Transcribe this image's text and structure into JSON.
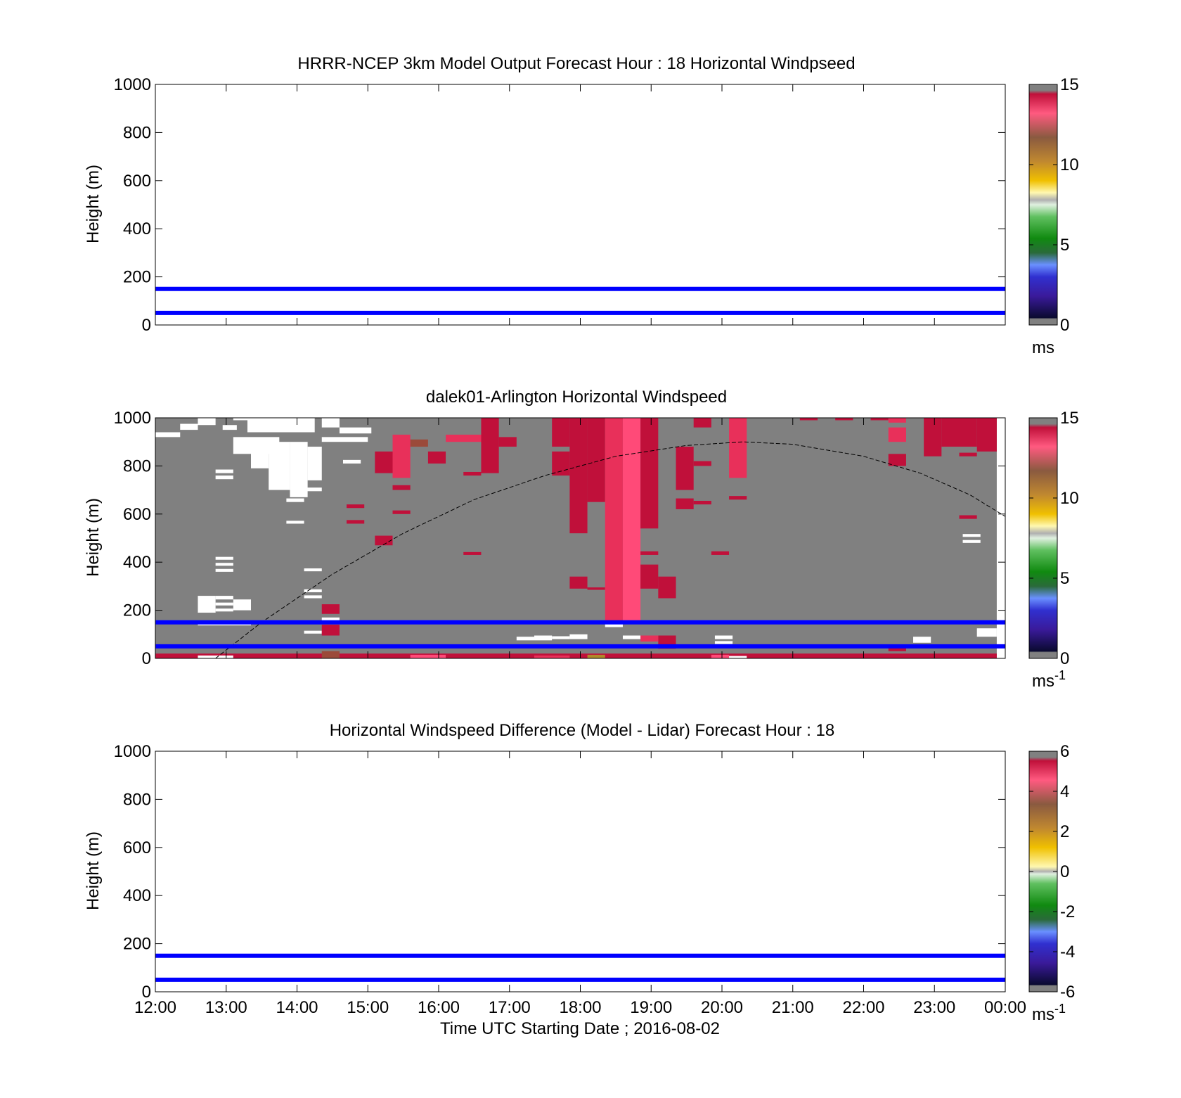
{
  "figure": {
    "x_axis_label": "Time UTC  Starting Date ; 2016-08-02"
  },
  "chart_data": [
    {
      "type": "heatmap",
      "title": "HRRR-NCEP 3km Model Output   Forecast Hour : 18 Horizontal Windpseed",
      "ylabel": "Height (m)",
      "xlabel": "",
      "xlim": [
        12,
        24
      ],
      "ylim": [
        0,
        1000
      ],
      "x_ticks": [
        "12:00",
        "13:00",
        "14:00",
        "15:00",
        "16:00",
        "17:00",
        "18:00",
        "19:00",
        "20:00",
        "21:00",
        "22:00",
        "23:00",
        "00:00"
      ],
      "y_ticks": [
        "0",
        "200",
        "400",
        "600",
        "800",
        "1000"
      ],
      "show_x_tick_labels": false,
      "colorbar": {
        "min": 0,
        "max": 15,
        "ticks": [
          "0",
          "5",
          "10",
          "15"
        ],
        "unit": "ms",
        "unit_sup": "",
        "palette": "speed"
      },
      "reference_lines": [
        {
          "height_m": 150,
          "color": "#0000ff"
        },
        {
          "height_m": 50,
          "color": "#0000ff"
        }
      ],
      "cells": []
    },
    {
      "type": "heatmap",
      "title": "dalek01-Arlington  Horizontal Windspeed",
      "ylabel": "Height (m)",
      "xlabel": "",
      "xlim": [
        12,
        24
      ],
      "ylim": [
        0,
        1000
      ],
      "x_ticks": [
        "12:00",
        "13:00",
        "14:00",
        "15:00",
        "16:00",
        "17:00",
        "18:00",
        "19:00",
        "20:00",
        "21:00",
        "22:00",
        "23:00",
        "00:00"
      ],
      "y_ticks": [
        "0",
        "200",
        "400",
        "600",
        "800",
        "1000"
      ],
      "show_x_tick_labels": false,
      "colorbar": {
        "min": 0,
        "max": 15,
        "ticks": [
          "0",
          "5",
          "10",
          "15"
        ],
        "unit": "ms",
        "unit_sup": "-1",
        "palette": "speed"
      },
      "background_fill": {
        "t0": 12,
        "t1": 23.88,
        "h0": 0,
        "h1": 1000,
        "color": "#808080"
      },
      "reference_lines": [
        {
          "height_m": 150,
          "color": "#0000ff"
        },
        {
          "height_m": 50,
          "color": "#0000ff"
        }
      ],
      "dashed_curve": {
        "color": "#000000",
        "points": [
          [
            12.85,
            0
          ],
          [
            13.5,
            150
          ],
          [
            14.5,
            350
          ],
          [
            15.5,
            520
          ],
          [
            16.5,
            660
          ],
          [
            17.5,
            760
          ],
          [
            18.5,
            840
          ],
          [
            19.5,
            885
          ],
          [
            20.3,
            900
          ],
          [
            21.0,
            890
          ],
          [
            22.0,
            840
          ],
          [
            22.8,
            770
          ],
          [
            23.5,
            680
          ],
          [
            24.0,
            590
          ]
        ]
      },
      "cells": [
        {
          "t0": 12.6,
          "t1": 12.85,
          "h0": 970,
          "h1": 1000,
          "c": "#ffffff"
        },
        {
          "t0": 12.35,
          "t1": 12.6,
          "h0": 950,
          "h1": 975,
          "c": "#ffffff"
        },
        {
          "t0": 12.0,
          "t1": 12.35,
          "h0": 920,
          "h1": 940,
          "c": "#ffffff"
        },
        {
          "t0": 12.95,
          "t1": 13.15,
          "h0": 950,
          "h1": 970,
          "c": "#ffffff"
        },
        {
          "t0": 13.1,
          "t1": 13.5,
          "h0": 990,
          "h1": 1000,
          "c": "#ffffff"
        },
        {
          "t0": 13.1,
          "t1": 13.75,
          "h0": 850,
          "h1": 920,
          "c": "#ffffff"
        },
        {
          "t0": 13.3,
          "t1": 14.25,
          "h0": 940,
          "h1": 1000,
          "c": "#ffffff"
        },
        {
          "t0": 13.35,
          "t1": 13.6,
          "h0": 790,
          "h1": 860,
          "c": "#ffffff"
        },
        {
          "t0": 13.6,
          "t1": 13.9,
          "h0": 700,
          "h1": 900,
          "c": "#ffffff"
        },
        {
          "t0": 13.9,
          "t1": 14.15,
          "h0": 670,
          "h1": 900,
          "c": "#ffffff"
        },
        {
          "t0": 14.15,
          "t1": 14.35,
          "h0": 740,
          "h1": 880,
          "c": "#ffffff"
        },
        {
          "t0": 14.35,
          "t1": 15.0,
          "h0": 900,
          "h1": 920,
          "c": "#ffffff"
        },
        {
          "t0": 14.35,
          "t1": 14.6,
          "h0": 960,
          "h1": 1000,
          "c": "#ffffff"
        },
        {
          "t0": 14.6,
          "t1": 15.05,
          "h0": 935,
          "h1": 960,
          "c": "#ffffff"
        },
        {
          "t0": 12.85,
          "t1": 13.1,
          "h0": 770,
          "h1": 785,
          "c": "#ffffff"
        },
        {
          "t0": 12.85,
          "t1": 13.1,
          "h0": 745,
          "h1": 760,
          "c": "#ffffff"
        },
        {
          "t0": 13.85,
          "t1": 14.1,
          "h0": 650,
          "h1": 665,
          "c": "#ffffff"
        },
        {
          "t0": 14.1,
          "t1": 14.35,
          "h0": 695,
          "h1": 710,
          "c": "#ffffff"
        },
        {
          "t0": 13.85,
          "t1": 14.1,
          "h0": 560,
          "h1": 572,
          "c": "#ffffff"
        },
        {
          "t0": 14.65,
          "t1": 14.9,
          "h0": 810,
          "h1": 825,
          "c": "#ffffff"
        },
        {
          "t0": 12.85,
          "t1": 13.1,
          "h0": 410,
          "h1": 422,
          "c": "#ffffff"
        },
        {
          "t0": 12.85,
          "t1": 13.1,
          "h0": 385,
          "h1": 397,
          "c": "#ffffff"
        },
        {
          "t0": 12.85,
          "t1": 13.1,
          "h0": 360,
          "h1": 372,
          "c": "#ffffff"
        },
        {
          "t0": 14.1,
          "t1": 14.35,
          "h0": 362,
          "h1": 374,
          "c": "#ffffff"
        },
        {
          "t0": 14.1,
          "t1": 14.35,
          "h0": 275,
          "h1": 287,
          "c": "#ffffff"
        },
        {
          "t0": 14.1,
          "t1": 14.35,
          "h0": 250,
          "h1": 262,
          "c": "#ffffff"
        },
        {
          "t0": 12.6,
          "t1": 12.85,
          "h0": 190,
          "h1": 260,
          "c": "#ffffff"
        },
        {
          "t0": 12.85,
          "t1": 13.1,
          "h0": 245,
          "h1": 260,
          "c": "#ffffff"
        },
        {
          "t0": 12.85,
          "t1": 13.1,
          "h0": 220,
          "h1": 232,
          "c": "#ffffff"
        },
        {
          "t0": 12.85,
          "t1": 13.1,
          "h0": 195,
          "h1": 207,
          "c": "#ffffff"
        },
        {
          "t0": 13.1,
          "t1": 13.35,
          "h0": 200,
          "h1": 245,
          "c": "#ffffff"
        },
        {
          "t0": 12.6,
          "t1": 13.35,
          "h0": 137,
          "h1": 147,
          "c": "#ffffff"
        },
        {
          "t0": 14.1,
          "t1": 14.35,
          "h0": 103,
          "h1": 115,
          "c": "#ffffff"
        },
        {
          "t0": 14.35,
          "t1": 14.6,
          "h0": 152,
          "h1": 170,
          "c": "#ffffff"
        },
        {
          "t0": 17.1,
          "t1": 17.35,
          "h0": 75,
          "h1": 90,
          "c": "#ffffff"
        },
        {
          "t0": 17.35,
          "t1": 17.6,
          "h0": 75,
          "h1": 95,
          "c": "#ffffff"
        },
        {
          "t0": 17.6,
          "t1": 17.85,
          "h0": 80,
          "h1": 92,
          "c": "#ffffff"
        },
        {
          "t0": 17.85,
          "t1": 18.1,
          "h0": 80,
          "h1": 100,
          "c": "#ffffff"
        },
        {
          "t0": 18.35,
          "t1": 18.6,
          "h0": 130,
          "h1": 145,
          "c": "#ffffff"
        },
        {
          "t0": 18.6,
          "t1": 18.85,
          "h0": 80,
          "h1": 95,
          "c": "#ffffff"
        },
        {
          "t0": 19.9,
          "t1": 20.15,
          "h0": 80,
          "h1": 95,
          "c": "#ffffff"
        },
        {
          "t0": 19.9,
          "t1": 20.15,
          "h0": 60,
          "h1": 72,
          "c": "#ffffff"
        },
        {
          "t0": 22.7,
          "t1": 22.95,
          "h0": 65,
          "h1": 90,
          "c": "#ffffff"
        },
        {
          "t0": 23.4,
          "t1": 23.65,
          "h0": 505,
          "h1": 517,
          "c": "#ffffff"
        },
        {
          "t0": 23.4,
          "t1": 23.65,
          "h0": 480,
          "h1": 492,
          "c": "#ffffff"
        },
        {
          "t0": 23.6,
          "t1": 23.88,
          "h0": 90,
          "h1": 125,
          "c": "#ffffff"
        },
        {
          "t0": 14.35,
          "t1": 14.6,
          "h0": 185,
          "h1": 225,
          "c": "#c0103a"
        },
        {
          "t0": 14.35,
          "t1": 14.6,
          "h0": 95,
          "h1": 140,
          "c": "#c0103a"
        },
        {
          "t0": 15.1,
          "t1": 15.35,
          "h0": 770,
          "h1": 860,
          "c": "#c0103a"
        },
        {
          "t0": 15.35,
          "t1": 15.6,
          "h0": 750,
          "h1": 930,
          "c": "#e8305a"
        },
        {
          "t0": 15.35,
          "t1": 15.6,
          "h0": 700,
          "h1": 720,
          "c": "#c0103a"
        },
        {
          "t0": 15.35,
          "t1": 15.6,
          "h0": 600,
          "h1": 615,
          "c": "#c0103a"
        },
        {
          "t0": 15.6,
          "t1": 15.85,
          "h0": 880,
          "h1": 910,
          "c": "#9b4a3a"
        },
        {
          "t0": 15.85,
          "t1": 16.1,
          "h0": 810,
          "h1": 860,
          "c": "#c0103a"
        },
        {
          "t0": 15.1,
          "t1": 15.35,
          "h0": 470,
          "h1": 510,
          "c": "#c0103a"
        },
        {
          "t0": 14.7,
          "t1": 14.95,
          "h0": 625,
          "h1": 640,
          "c": "#c0103a"
        },
        {
          "t0": 14.7,
          "t1": 14.95,
          "h0": 560,
          "h1": 575,
          "c": "#c0103a"
        },
        {
          "t0": 16.1,
          "t1": 16.6,
          "h0": 900,
          "h1": 930,
          "c": "#e8305a"
        },
        {
          "t0": 16.6,
          "t1": 16.85,
          "h0": 770,
          "h1": 1000,
          "c": "#c0103a"
        },
        {
          "t0": 16.85,
          "t1": 17.1,
          "h0": 880,
          "h1": 920,
          "c": "#c0103a"
        },
        {
          "t0": 16.35,
          "t1": 16.6,
          "h0": 760,
          "h1": 775,
          "c": "#c0103a"
        },
        {
          "t0": 16.35,
          "t1": 16.6,
          "h0": 430,
          "h1": 442,
          "c": "#c0103a"
        },
        {
          "t0": 17.6,
          "t1": 17.85,
          "h0": 880,
          "h1": 1000,
          "c": "#c0103a"
        },
        {
          "t0": 17.6,
          "t1": 17.85,
          "h0": 760,
          "h1": 860,
          "c": "#c0103a"
        },
        {
          "t0": 17.85,
          "t1": 18.1,
          "h0": 520,
          "h1": 1000,
          "c": "#c0103a"
        },
        {
          "t0": 18.1,
          "t1": 18.35,
          "h0": 650,
          "h1": 1000,
          "c": "#c0103a"
        },
        {
          "t0": 17.85,
          "t1": 18.1,
          "h0": 290,
          "h1": 340,
          "c": "#c0103a"
        },
        {
          "t0": 18.1,
          "t1": 18.35,
          "h0": 285,
          "h1": 295,
          "c": "#c0103a"
        },
        {
          "t0": 18.35,
          "t1": 18.6,
          "h0": 150,
          "h1": 1000,
          "c": "#e8305a"
        },
        {
          "t0": 18.6,
          "t1": 18.85,
          "h0": 150,
          "h1": 1000,
          "c": "#ff4a78"
        },
        {
          "t0": 18.85,
          "t1": 19.1,
          "h0": 290,
          "h1": 390,
          "c": "#c0103a"
        },
        {
          "t0": 18.85,
          "t1": 19.1,
          "h0": 540,
          "h1": 1000,
          "c": "#c0103a"
        },
        {
          "t0": 18.85,
          "t1": 19.1,
          "h0": 430,
          "h1": 445,
          "c": "#c0103a"
        },
        {
          "t0": 19.1,
          "t1": 19.35,
          "h0": 250,
          "h1": 340,
          "c": "#c0103a"
        },
        {
          "t0": 19.35,
          "t1": 19.6,
          "h0": 700,
          "h1": 880,
          "c": "#c0103a"
        },
        {
          "t0": 19.35,
          "t1": 19.6,
          "h0": 620,
          "h1": 665,
          "c": "#c0103a"
        },
        {
          "t0": 19.6,
          "t1": 19.85,
          "h0": 960,
          "h1": 1000,
          "c": "#c0103a"
        },
        {
          "t0": 19.6,
          "t1": 19.85,
          "h0": 800,
          "h1": 820,
          "c": "#c0103a"
        },
        {
          "t0": 19.6,
          "t1": 19.85,
          "h0": 640,
          "h1": 655,
          "c": "#c0103a"
        },
        {
          "t0": 19.85,
          "t1": 20.1,
          "h0": 430,
          "h1": 445,
          "c": "#c0103a"
        },
        {
          "t0": 20.1,
          "t1": 20.35,
          "h0": 750,
          "h1": 1000,
          "c": "#e8305a"
        },
        {
          "t0": 20.1,
          "t1": 20.35,
          "h0": 660,
          "h1": 675,
          "c": "#c0103a"
        },
        {
          "t0": 21.1,
          "t1": 21.35,
          "h0": 990,
          "h1": 1000,
          "c": "#c0103a"
        },
        {
          "t0": 21.6,
          "t1": 21.85,
          "h0": 990,
          "h1": 1000,
          "c": "#c0103a"
        },
        {
          "t0": 22.1,
          "t1": 22.35,
          "h0": 990,
          "h1": 1000,
          "c": "#c0103a"
        },
        {
          "t0": 22.35,
          "t1": 22.6,
          "h0": 980,
          "h1": 1000,
          "c": "#e8305a"
        },
        {
          "t0": 22.35,
          "t1": 22.6,
          "h0": 900,
          "h1": 960,
          "c": "#e8305a"
        },
        {
          "t0": 22.35,
          "t1": 22.6,
          "h0": 800,
          "h1": 850,
          "c": "#c0103a"
        },
        {
          "t0": 22.85,
          "t1": 23.1,
          "h0": 840,
          "h1": 1000,
          "c": "#c0103a"
        },
        {
          "t0": 23.1,
          "t1": 23.6,
          "h0": 880,
          "h1": 1000,
          "c": "#c0103a"
        },
        {
          "t0": 23.6,
          "t1": 23.88,
          "h0": 860,
          "h1": 1000,
          "c": "#c0103a"
        },
        {
          "t0": 23.35,
          "t1": 23.6,
          "h0": 840,
          "h1": 855,
          "c": "#c0103a"
        },
        {
          "t0": 23.35,
          "t1": 23.6,
          "h0": 580,
          "h1": 595,
          "c": "#c0103a"
        },
        {
          "t0": 22.35,
          "t1": 22.6,
          "h0": 30,
          "h1": 55,
          "c": "#c0103a"
        },
        {
          "t0": 12.0,
          "t1": 23.88,
          "h0": 0,
          "h1": 20,
          "c": "#c0103a"
        },
        {
          "t0": 14.35,
          "t1": 14.6,
          "h0": 0,
          "h1": 30,
          "c": "#9b4a3a"
        },
        {
          "t0": 12.6,
          "t1": 13.1,
          "h0": 0,
          "h1": 12,
          "c": "#ffffff"
        },
        {
          "t0": 15.6,
          "t1": 16.1,
          "h0": 0,
          "h1": 15,
          "c": "#ff4a78"
        },
        {
          "t0": 17.35,
          "t1": 17.85,
          "h0": 0,
          "h1": 12,
          "c": "#e8305a"
        },
        {
          "t0": 18.1,
          "t1": 18.35,
          "h0": 0,
          "h1": 15,
          "c": "#b08a2a"
        },
        {
          "t0": 19.85,
          "t1": 20.1,
          "h0": 0,
          "h1": 15,
          "c": "#ff4a78"
        },
        {
          "t0": 20.1,
          "t1": 20.35,
          "h0": 0,
          "h1": 10,
          "c": "#ffffff"
        },
        {
          "t0": 19.1,
          "t1": 19.35,
          "h0": 40,
          "h1": 95,
          "c": "#c0103a"
        },
        {
          "t0": 18.85,
          "t1": 19.1,
          "h0": 70,
          "h1": 95,
          "c": "#e8305a"
        }
      ]
    },
    {
      "type": "heatmap",
      "title": "Horizontal Windspeed Difference (Model - Lidar) Forecast Hour : 18",
      "ylabel": "Height (m)",
      "xlabel": "Time UTC  Starting Date ; 2016-08-02",
      "xlim": [
        12,
        24
      ],
      "ylim": [
        0,
        1000
      ],
      "x_ticks": [
        "12:00",
        "13:00",
        "14:00",
        "15:00",
        "16:00",
        "17:00",
        "18:00",
        "19:00",
        "20:00",
        "21:00",
        "22:00",
        "23:00",
        "00:00"
      ],
      "y_ticks": [
        "0",
        "200",
        "400",
        "600",
        "800",
        "1000"
      ],
      "show_x_tick_labels": true,
      "colorbar": {
        "min": -6,
        "max": 6,
        "ticks": [
          "-6",
          "-4",
          "-2",
          "0",
          "2",
          "4",
          "6"
        ],
        "unit": "ms",
        "unit_sup": "-1",
        "palette": "diff"
      },
      "reference_lines": [
        {
          "height_m": 150,
          "color": "#0000ff"
        },
        {
          "height_m": 50,
          "color": "#0000ff"
        }
      ],
      "cells": []
    }
  ]
}
